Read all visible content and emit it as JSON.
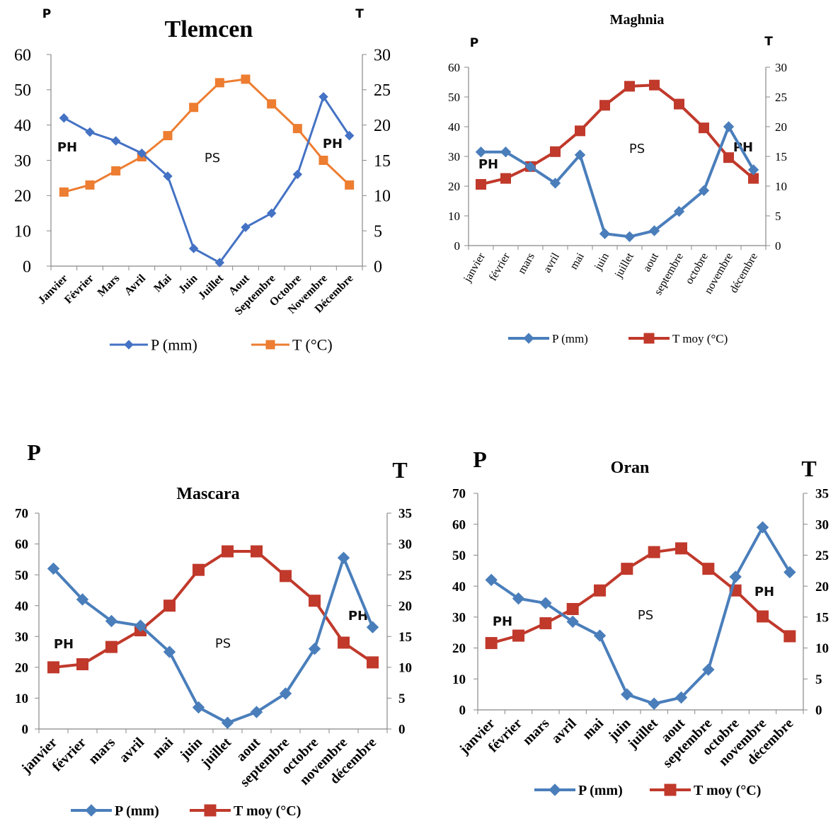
{
  "chart_data": [
    {
      "type": "line",
      "title": "Tlemcen",
      "y_left_label": "P",
      "y_right_label": "T",
      "categories": [
        "Janvier",
        "Février",
        "Mars",
        "Avril",
        "Mai",
        "Juin",
        "Juillet",
        "Aout",
        "Septembre",
        "Octobre",
        "Novembre",
        "Décembre"
      ],
      "ylim_left": [
        0,
        60
      ],
      "ylim_right": [
        0,
        30
      ],
      "yticks_left": [
        "0",
        "10",
        "20",
        "30",
        "40",
        "50",
        "60"
      ],
      "yticks_right": [
        "0",
        "5",
        "10",
        "15",
        "20",
        "25",
        "30"
      ],
      "series": [
        {
          "name": "P (mm)",
          "axis": "left",
          "color": "#4472c4",
          "marker": "diamond",
          "values": [
            42,
            38,
            35.5,
            32,
            25.5,
            5,
            1,
            11,
            15,
            26,
            48,
            37
          ]
        },
        {
          "name": "T  (°C)",
          "axis": "right",
          "color": "#ed7d31",
          "marker": "square",
          "values": [
            10.5,
            11.5,
            13.5,
            15.5,
            18.5,
            22.5,
            26,
            26.5,
            23,
            19.5,
            15,
            11.5
          ]
        }
      ],
      "annotations": [
        "PH",
        "PS",
        "PH"
      ],
      "legend": "bottom"
    },
    {
      "type": "line",
      "title": "Maghnia",
      "y_left_label": "P",
      "y_right_label": "T",
      "categories": [
        "janvier",
        "février",
        "mars",
        "avril",
        "mai",
        "juin",
        "juillet",
        "aout",
        "septembre",
        "octobre",
        "novembre",
        "décembre"
      ],
      "ylim_left": [
        0,
        60
      ],
      "ylim_right": [
        0,
        30
      ],
      "yticks_left": [
        "0",
        "10",
        "20",
        "30",
        "40",
        "50",
        "60"
      ],
      "yticks_right": [
        "0",
        "5",
        "10",
        "15",
        "20",
        "25",
        "30"
      ],
      "series": [
        {
          "name": "P (mm)",
          "axis": "left",
          "color": "#4a7ebb",
          "marker": "diamond",
          "values": [
            31.5,
            31.5,
            26.5,
            21,
            30.5,
            4,
            3,
            5,
            11.5,
            18.5,
            40,
            25.5
          ]
        },
        {
          "name": "T moy (°C)",
          "axis": "right",
          "color": "#c0392b",
          "marker": "square",
          "values": [
            10.3,
            11.3,
            13.3,
            15.8,
            19.3,
            23.6,
            26.8,
            27,
            23.8,
            19.8,
            14.8,
            11.3
          ]
        }
      ],
      "annotations": [
        "PH",
        "PS",
        "PH"
      ],
      "legend": "bottom"
    },
    {
      "type": "line",
      "title": "Mascara",
      "y_left_label": "P",
      "y_right_label": "T",
      "categories": [
        "janvier",
        "février",
        "mars",
        "avril",
        "mai",
        "juin",
        "juillet",
        "aout",
        "septembre",
        "octobre",
        "novembre",
        "décembre"
      ],
      "ylim_left": [
        0,
        70
      ],
      "ylim_right": [
        0,
        35
      ],
      "yticks_left": [
        "0",
        "10",
        "20",
        "30",
        "40",
        "50",
        "60",
        "70"
      ],
      "yticks_right": [
        "0",
        "5",
        "10",
        "15",
        "20",
        "25",
        "30",
        "35"
      ],
      "series": [
        {
          "name": "P (mm)",
          "axis": "left",
          "color": "#4a7ebb",
          "marker": "diamond",
          "values": [
            52,
            42,
            35,
            33.5,
            25,
            7,
            2,
            5.5,
            11.5,
            26,
            55.5,
            33
          ]
        },
        {
          "name": "T moy (°C)",
          "axis": "right",
          "color": "#c0392b",
          "marker": "square",
          "values": [
            10,
            10.5,
            13.3,
            16,
            20,
            25.8,
            28.8,
            28.8,
            24.8,
            20.8,
            14,
            10.8
          ]
        }
      ],
      "annotations": [
        "PH",
        "PS",
        "PH"
      ],
      "legend": "bottom"
    },
    {
      "type": "line",
      "title": "Oran",
      "y_left_label": "P",
      "y_right_label": "T",
      "categories": [
        "janvier",
        "février",
        "mars",
        "avril",
        "mai",
        "juin",
        "juillet",
        "aout",
        "septembre",
        "octobre",
        "novembre",
        "décembre"
      ],
      "ylim_left": [
        0,
        70
      ],
      "ylim_right": [
        0,
        35
      ],
      "yticks_left": [
        "0",
        "10",
        "20",
        "30",
        "40",
        "50",
        "60",
        "70"
      ],
      "yticks_right": [
        "0",
        "5",
        "10",
        "15",
        "20",
        "25",
        "30",
        "35"
      ],
      "series": [
        {
          "name": "P (mm)",
          "axis": "left",
          "color": "#4a7ebb",
          "marker": "diamond",
          "values": [
            42,
            36,
            34.5,
            28.5,
            24,
            5,
            2,
            4,
            13,
            43,
            59,
            44.5
          ]
        },
        {
          "name": "T moy (°C)",
          "axis": "right",
          "color": "#c0392b",
          "marker": "square",
          "values": [
            10.8,
            12,
            14,
            16.3,
            19.3,
            22.8,
            25.5,
            26.1,
            22.8,
            19.3,
            15.1,
            11.9
          ]
        }
      ],
      "annotations": [
        "PH",
        "PS",
        "PH"
      ],
      "legend": "bottom"
    }
  ]
}
